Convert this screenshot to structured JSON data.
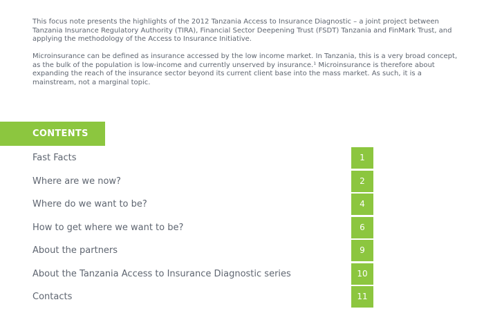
{
  "intro": {
    "paragraph1": "This focus note presents the highlights of the 2012 Tanzania Access to Insurance Diagnostic – a joint project between Tanzania Insurance Regulatory Authority (TIRA), Financial Sector Deepening Trust (FSDT) Tanzania and FinMark Trust, and applying the methodology of the Access to Insurance Initiative.",
    "paragraph2": "Microinsurance can be defined as insurance accessed by the low income market. In Tanzania, this is a very broad concept, as the bulk of the population is low-income and currently unserved by insurance.¹ Microinsurance is therefore about expanding the reach of the insurance sector beyond its current client base into the mass market. As such, it is a mainstream, not a marginal topic."
  },
  "contents": {
    "title": "CONTENTS",
    "items": [
      {
        "label": "Fast Facts",
        "page": "1"
      },
      {
        "label": "Where are we now?",
        "page": "2"
      },
      {
        "label": "Where do we want to be?",
        "page": "4"
      },
      {
        "label": "How to get where we want to be?",
        "page": "6"
      },
      {
        "label": "About the partners",
        "page": "9"
      },
      {
        "label": "About the Tanzania Access to Insurance Diagnostic series",
        "page": "10"
      },
      {
        "label": "Contacts",
        "page": "11"
      }
    ]
  },
  "colors": {
    "accent_green": "#8cc63f",
    "body_text": "#5e6570"
  }
}
